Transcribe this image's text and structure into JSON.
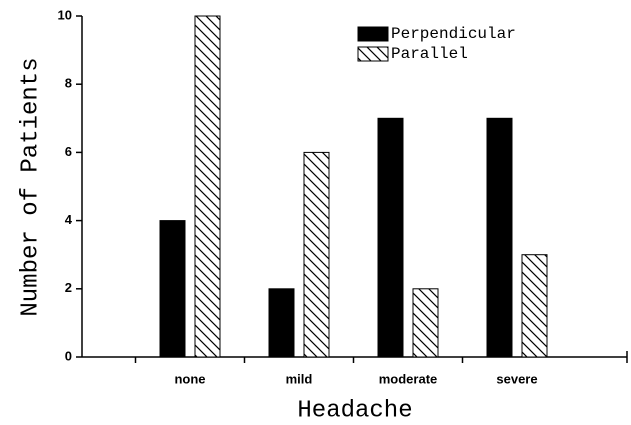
{
  "chart_data": {
    "type": "bar",
    "x_label": "Headache",
    "y_label": "Number of Patients",
    "categories": [
      "none",
      "mild",
      "moderate",
      "severe"
    ],
    "series": [
      {
        "name": "Perpendicular",
        "color": "#000000",
        "hatch": false,
        "values": [
          4,
          2,
          7,
          7
        ]
      },
      {
        "name": "Parallel",
        "color": "#000000",
        "hatch": true,
        "values": [
          10,
          6,
          2,
          3
        ]
      }
    ],
    "ylim": [
      0,
      10
    ],
    "yticks": [
      0,
      2,
      4,
      6,
      8,
      10
    ],
    "grid": false,
    "legend": "upper right"
  }
}
